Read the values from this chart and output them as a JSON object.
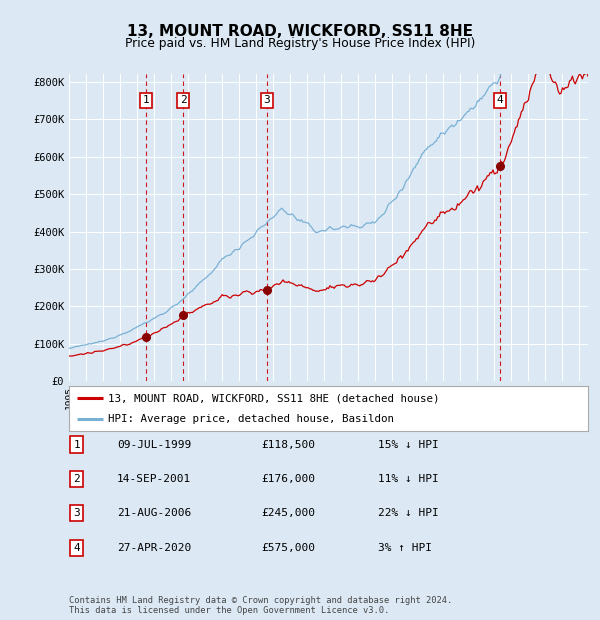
{
  "title": "13, MOUNT ROAD, WICKFORD, SS11 8HE",
  "subtitle": "Price paid vs. HM Land Registry's House Price Index (HPI)",
  "title_fontsize": 11,
  "subtitle_fontsize": 9,
  "bg_color": "#dce9f5",
  "plot_bg_color": "#dce9f5",
  "grid_color": "#ffffff",
  "ylim": [
    0,
    820000
  ],
  "yticks": [
    0,
    100000,
    200000,
    300000,
    400000,
    500000,
    600000,
    700000,
    800000
  ],
  "ytick_labels": [
    "£0",
    "£100K",
    "£200K",
    "£300K",
    "£400K",
    "£500K",
    "£600K",
    "£700K",
    "£800K"
  ],
  "x_start_year": 1995,
  "x_end_year": 2025,
  "sale_years": [
    1999.52,
    2001.71,
    2006.64,
    2020.33
  ],
  "sale_prices": [
    118500,
    176000,
    245000,
    575000
  ],
  "legend_property": "13, MOUNT ROAD, WICKFORD, SS11 8HE (detached house)",
  "legend_hpi": "HPI: Average price, detached house, Basildon",
  "property_line_color": "#cc0000",
  "hpi_line_color": "#7ab0d4",
  "dashed_line_color": "#cc0000",
  "marker_color": "#990000",
  "footer": "Contains HM Land Registry data © Crown copyright and database right 2024.\nThis data is licensed under the Open Government Licence v3.0.",
  "table_rows": [
    [
      "1",
      "09-JUL-1999",
      "£118,500",
      "15% ↓ HPI"
    ],
    [
      "2",
      "14-SEP-2001",
      "£176,000",
      "11% ↓ HPI"
    ],
    [
      "3",
      "21-AUG-2006",
      "£245,000",
      "22% ↓ HPI"
    ],
    [
      "4",
      "27-APR-2020",
      "£575,000",
      "3% ↑ HPI"
    ]
  ]
}
